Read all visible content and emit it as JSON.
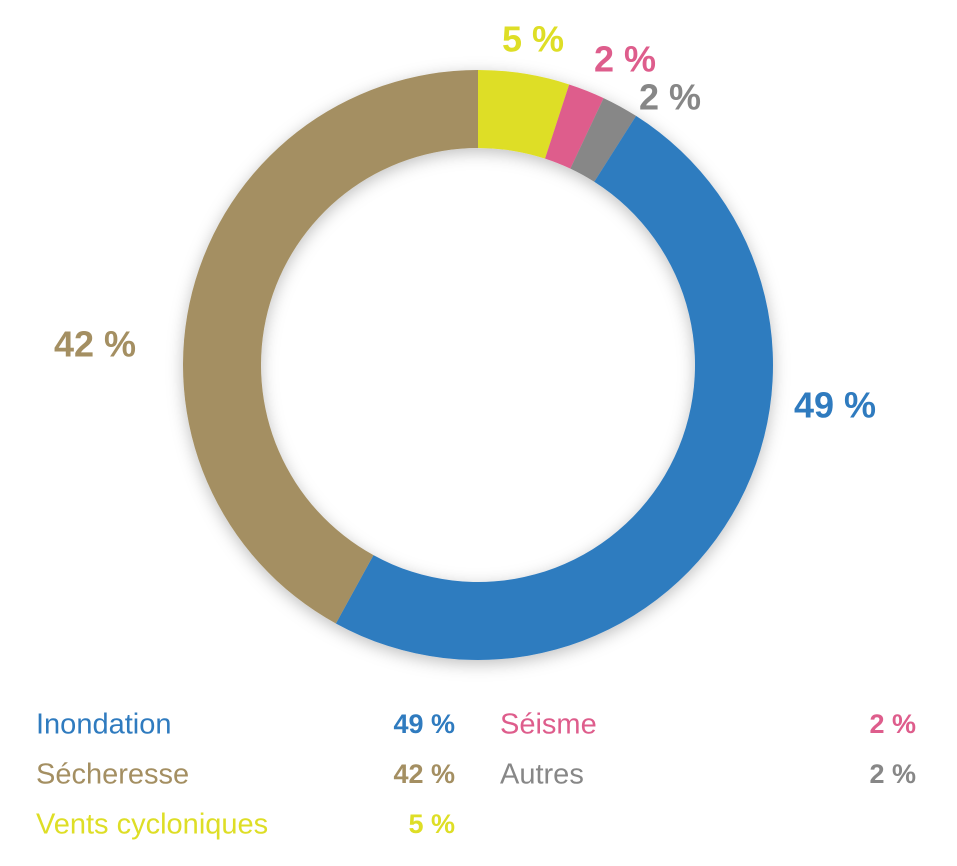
{
  "chart_data": {
    "type": "donut",
    "categories": [
      "Vents cycloniques",
      "Séisme",
      "Autres",
      "Inondation",
      "Sécheresse"
    ],
    "values": [
      5,
      2,
      2,
      49,
      42
    ],
    "value_labels": [
      "5 %",
      "2 %",
      "2 %",
      "49 %",
      "42 %"
    ],
    "colors": [
      "#dede26",
      "#de5d8c",
      "#878787",
      "#2f7bbf",
      "#a48f62"
    ],
    "legend": true
  }
}
